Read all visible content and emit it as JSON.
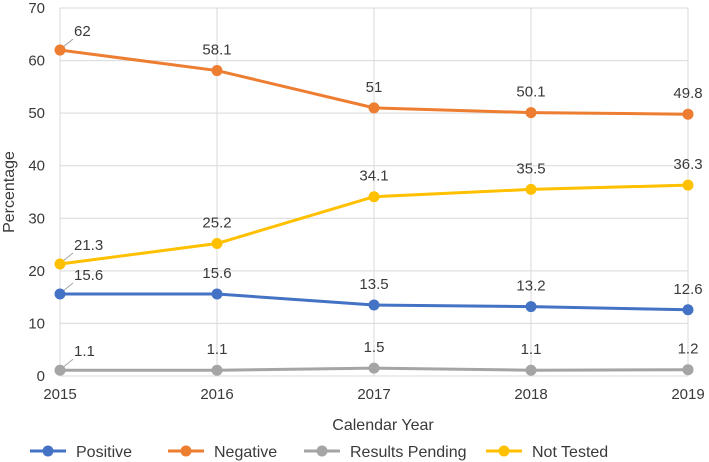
{
  "chart_data": {
    "type": "line",
    "title": "",
    "xlabel": "Calendar Year",
    "ylabel": "Percentage",
    "categories": [
      "2015",
      "2016",
      "2017",
      "2018",
      "2019"
    ],
    "ylim": [
      0,
      70
    ],
    "yticks": [
      "0",
      "10",
      "20",
      "30",
      "40",
      "50",
      "60",
      "70"
    ],
    "grid": true,
    "legend_position": "bottom",
    "series": [
      {
        "name": "Positive",
        "color": "#4472c4",
        "values": [
          15.6,
          15.6,
          13.5,
          13.2,
          12.6
        ],
        "labels": [
          "15.6",
          "15.6",
          "13.5",
          "13.2",
          "12.6"
        ]
      },
      {
        "name": "Negative",
        "color": "#ed7d31",
        "values": [
          62,
          58.1,
          51,
          50.1,
          49.8
        ],
        "labels": [
          "62",
          "58.1",
          "51",
          "50.1",
          "49.8"
        ]
      },
      {
        "name": "Results Pending",
        "color": "#a5a5a5",
        "values": [
          1.1,
          1.1,
          1.5,
          1.1,
          1.2
        ],
        "labels": [
          "1.1",
          "1.1",
          "1.5",
          "1.1",
          "1.2"
        ]
      },
      {
        "name": "Not Tested",
        "color": "#ffc000",
        "values": [
          21.3,
          25.2,
          34.1,
          35.5,
          36.3
        ],
        "labels": [
          "21.3",
          "25.2",
          "34.1",
          "35.5",
          "36.3"
        ]
      }
    ]
  }
}
